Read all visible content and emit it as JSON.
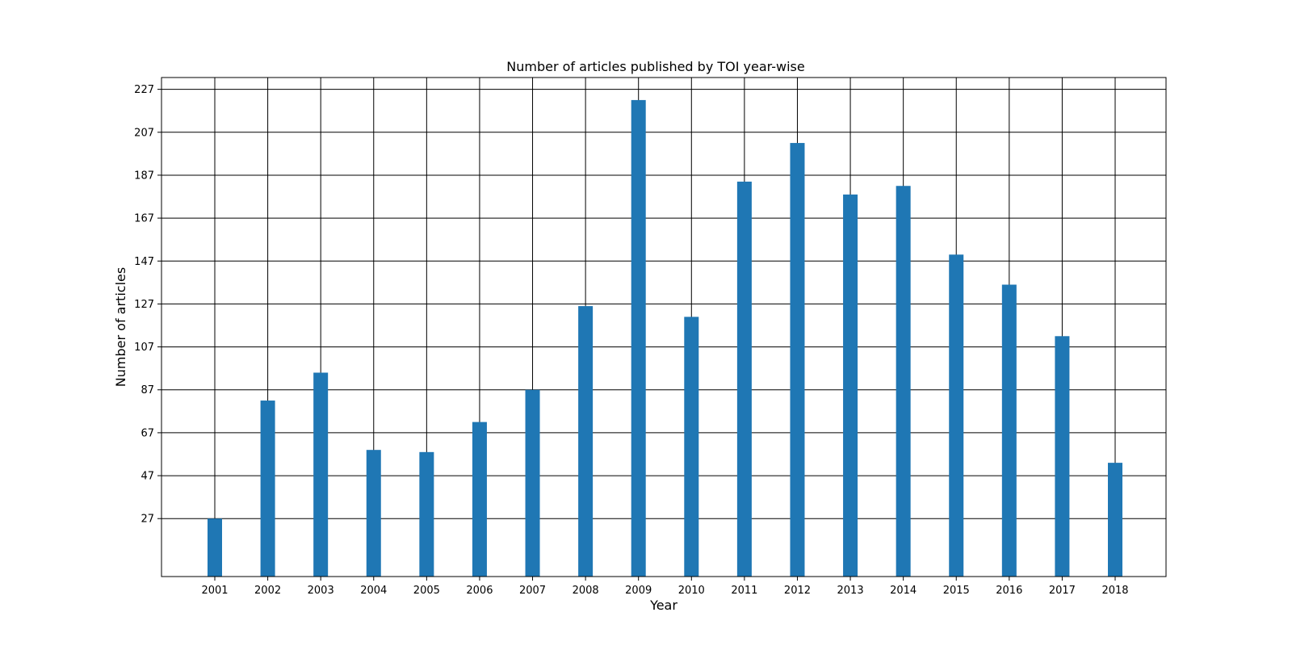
{
  "chart_data": {
    "type": "bar",
    "title": "Number of articles published by TOI year-wise",
    "xlabel": "Year",
    "ylabel": "Number of articles",
    "categories": [
      "2001",
      "2002",
      "2003",
      "2004",
      "2005",
      "2006",
      "2007",
      "2008",
      "2009",
      "2010",
      "2011",
      "2012",
      "2013",
      "2014",
      "2015",
      "2016",
      "2017",
      "2018"
    ],
    "values": [
      27,
      82,
      95,
      59,
      58,
      72,
      87,
      126,
      222,
      121,
      184,
      202,
      178,
      182,
      150,
      136,
      112,
      53
    ],
    "yticks": [
      27,
      47,
      67,
      87,
      107,
      127,
      147,
      167,
      187,
      207,
      227
    ],
    "ylim": [
      0,
      232.5
    ],
    "grid": true,
    "bar_color": "#1f77b4"
  }
}
